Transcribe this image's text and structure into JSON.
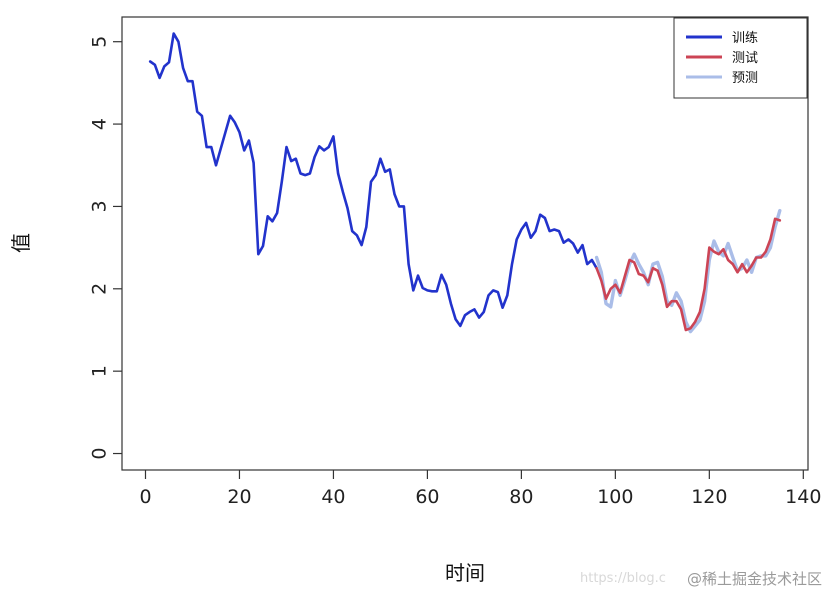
{
  "chart_data": {
    "type": "line",
    "title": "",
    "xlabel": "时间",
    "ylabel": "值",
    "xlim": [
      -5,
      141
    ],
    "ylim": [
      -0.2,
      5.3
    ],
    "xticks": [
      "0",
      "20",
      "40",
      "60",
      "80",
      "100",
      "120",
      "140"
    ],
    "xtick_values": [
      0,
      20,
      40,
      60,
      80,
      100,
      120,
      140
    ],
    "yticks": [
      "0",
      "1",
      "2",
      "3",
      "4",
      "5"
    ],
    "ytick_values": [
      0,
      1,
      2,
      3,
      4,
      5
    ],
    "grid": false,
    "legend_position": "top-right",
    "series": [
      {
        "name": "训练",
        "color": "#2233cc",
        "x": [
          1,
          2,
          3,
          4,
          5,
          6,
          7,
          8,
          9,
          10,
          11,
          12,
          13,
          14,
          15,
          16,
          17,
          18,
          19,
          20,
          21,
          22,
          23,
          24,
          25,
          26,
          27,
          28,
          29,
          30,
          31,
          32,
          33,
          34,
          35,
          36,
          37,
          38,
          39,
          40,
          41,
          42,
          43,
          44,
          45,
          46,
          47,
          48,
          49,
          50,
          51,
          52,
          53,
          54,
          55,
          56,
          57,
          58,
          59,
          60,
          61,
          62,
          63,
          64,
          65,
          66,
          67,
          68,
          69,
          70,
          71,
          72,
          73,
          74,
          75,
          76,
          77,
          78,
          79,
          80,
          81,
          82,
          83,
          84,
          85,
          86,
          87,
          88,
          89,
          90,
          91,
          92,
          93,
          94,
          95,
          96
        ],
        "y": [
          4.76,
          4.72,
          4.56,
          4.7,
          4.75,
          5.1,
          5.0,
          4.68,
          4.52,
          4.52,
          4.15,
          4.1,
          3.72,
          3.72,
          3.5,
          3.7,
          3.9,
          4.1,
          4.02,
          3.9,
          3.68,
          3.8,
          3.53,
          2.42,
          2.52,
          2.88,
          2.82,
          2.92,
          3.3,
          3.72,
          3.55,
          3.58,
          3.4,
          3.38,
          3.4,
          3.6,
          3.73,
          3.68,
          3.72,
          3.85,
          3.4,
          3.18,
          2.98,
          2.7,
          2.65,
          2.53,
          2.75,
          3.3,
          3.38,
          3.58,
          3.42,
          3.45,
          3.15,
          3.0,
          3.0,
          2.3,
          1.98,
          2.16,
          2.01,
          1.98,
          1.97,
          1.97,
          2.17,
          2.05,
          1.82,
          1.63,
          1.55,
          1.68,
          1.72,
          1.75,
          1.65,
          1.72,
          1.92,
          1.98,
          1.96,
          1.77,
          1.92,
          2.3,
          2.6,
          2.72,
          2.8,
          2.62,
          2.7,
          2.9,
          2.86,
          2.7,
          2.72,
          2.7,
          2.56,
          2.6,
          2.55,
          2.44,
          2.53,
          2.3,
          2.35,
          2.25
        ]
      },
      {
        "name": "测试",
        "color": "#cc4455",
        "x": [
          96,
          97,
          98,
          99,
          100,
          101,
          102,
          103,
          104,
          105,
          106,
          107,
          108,
          109,
          110,
          111,
          112,
          113,
          114,
          115,
          116,
          117,
          118,
          119,
          120,
          121,
          122,
          123,
          124,
          125,
          126,
          127,
          128,
          129,
          130,
          131,
          132,
          133,
          134,
          135
        ],
        "y": [
          2.25,
          2.1,
          1.88,
          2.0,
          2.05,
          1.95,
          2.15,
          2.35,
          2.32,
          2.18,
          2.16,
          2.08,
          2.25,
          2.22,
          2.05,
          1.78,
          1.85,
          1.85,
          1.75,
          1.5,
          1.52,
          1.6,
          1.72,
          2.0,
          2.5,
          2.45,
          2.42,
          2.48,
          2.35,
          2.3,
          2.2,
          2.3,
          2.2,
          2.28,
          2.38,
          2.38,
          2.45,
          2.6,
          2.85,
          2.83
        ]
      },
      {
        "name": "预测",
        "color": "#aabde8",
        "x": [
          96,
          97,
          98,
          99,
          100,
          101,
          102,
          103,
          104,
          105,
          106,
          107,
          108,
          109,
          110,
          111,
          112,
          113,
          114,
          115,
          116,
          117,
          118,
          119,
          120,
          121,
          122,
          123,
          124,
          125,
          126,
          127,
          128,
          129,
          130,
          131,
          132,
          133,
          134,
          135
        ],
        "y": [
          2.38,
          2.2,
          1.82,
          1.78,
          2.1,
          1.92,
          2.1,
          2.3,
          2.42,
          2.3,
          2.2,
          2.05,
          2.3,
          2.32,
          2.15,
          1.85,
          1.8,
          1.95,
          1.85,
          1.6,
          1.48,
          1.55,
          1.62,
          1.85,
          2.35,
          2.58,
          2.45,
          2.4,
          2.55,
          2.38,
          2.22,
          2.25,
          2.35,
          2.2,
          2.38,
          2.4,
          2.4,
          2.5,
          2.75,
          2.95
        ]
      }
    ]
  },
  "watermark": {
    "text": "@稀土掘金技术社区",
    "faint_text": "https://blog.c"
  }
}
